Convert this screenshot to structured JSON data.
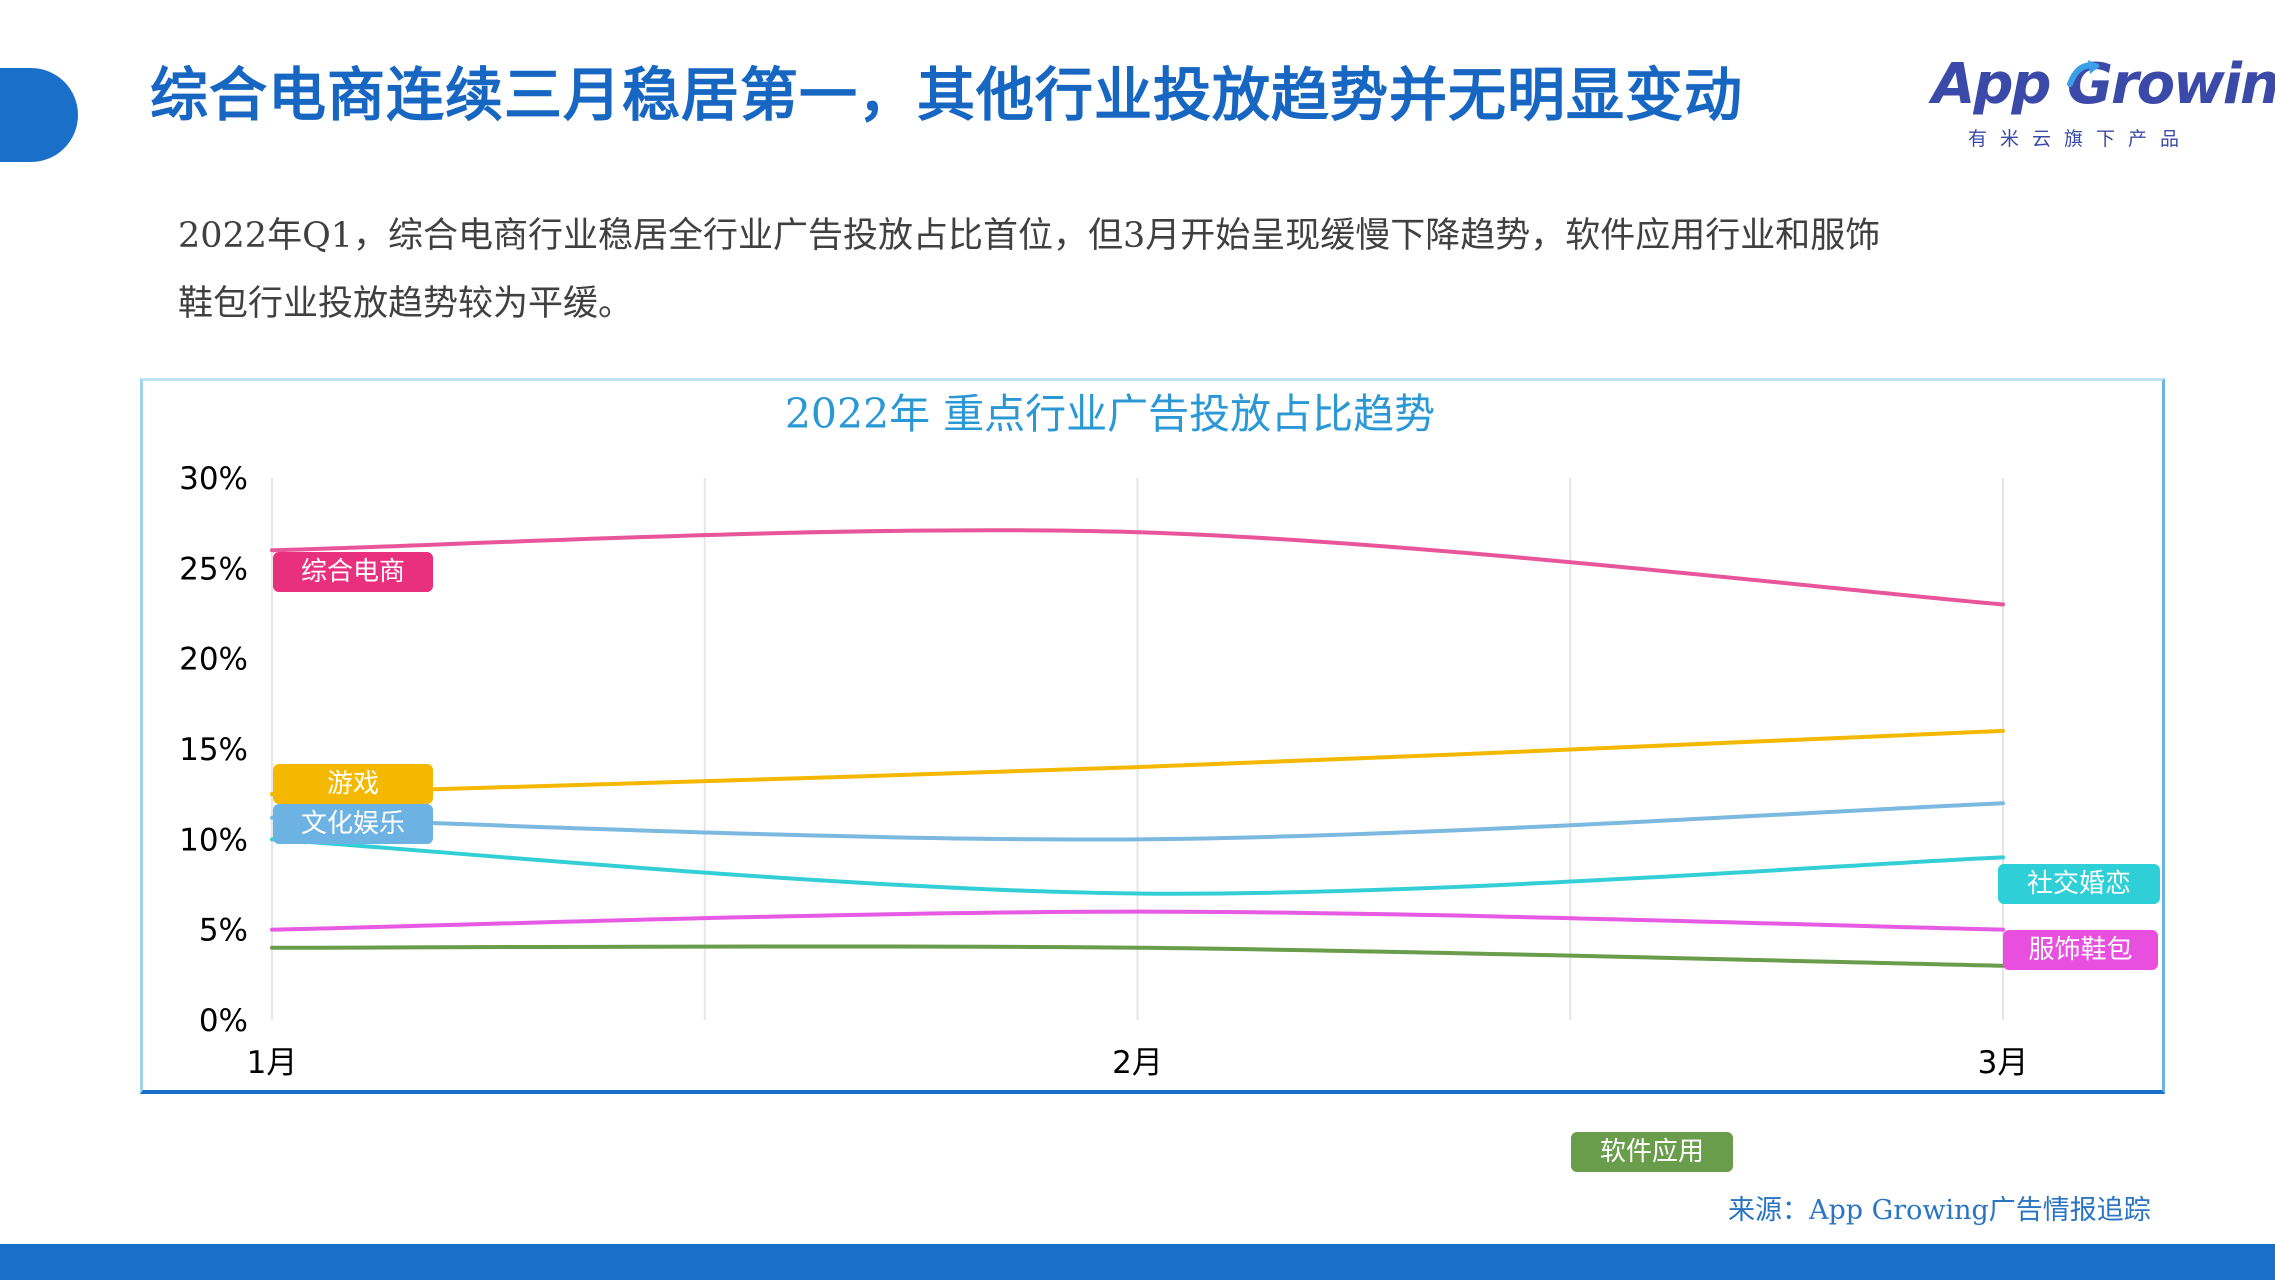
{
  "slide": {
    "title": "综合电商连续三月稳居第一，其他行业投放趋势并无明显变动",
    "summary": "2022年Q1，综合电商行业稳居全行业广告投放占比首位，但3月开始呈现缓慢下降趋势，软件应用行业和服饰鞋包行业投放趋势较为平缓。",
    "source": "来源：App Growing广告情报追踪"
  },
  "logo": {
    "wordmark": "App Growing",
    "tagline": "有米云旗下产品",
    "color": "#3b4aa8"
  },
  "chart_data": {
    "type": "line",
    "title": "2022年 重点行业广告投放占比趋势",
    "categories": [
      "1月",
      "2月",
      "3月"
    ],
    "yticks": [
      "0%",
      "5%",
      "10%",
      "15%",
      "20%",
      "25%",
      "30%"
    ],
    "ylim": [
      0,
      30
    ],
    "unit": "%",
    "grid": "vertical",
    "smooth": true,
    "series": [
      {
        "name": "综合电商",
        "values": [
          26,
          27,
          23
        ],
        "color": "#e8559b",
        "label_color": "#e8307f"
      },
      {
        "name": "游戏",
        "values": [
          12.5,
          14,
          16
        ],
        "color": "#f5b800",
        "label_color": "#f5b800"
      },
      {
        "name": "文化娱乐",
        "values": [
          11.2,
          10,
          12
        ],
        "color": "#7bb9e0",
        "label_color": "#6cb2e3"
      },
      {
        "name": "社交婚恋",
        "values": [
          10,
          7,
          9
        ],
        "color": "#34cfd6",
        "label_color": "#2fcfd7"
      },
      {
        "name": "服饰鞋包",
        "values": [
          5,
          6,
          5
        ],
        "color": "#e75ae3",
        "label_color": "#e84fde"
      },
      {
        "name": "软件应用",
        "values": [
          4,
          4,
          3
        ],
        "color": "#6a9d4b",
        "label_color": "#6a9d4b"
      }
    ]
  }
}
